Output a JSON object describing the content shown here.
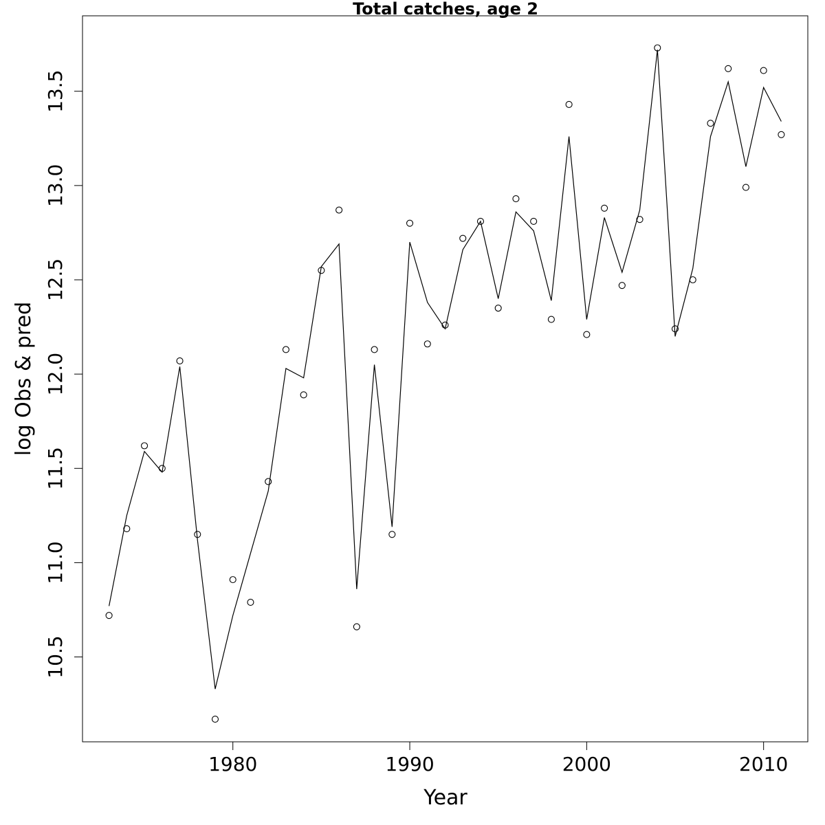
{
  "chart_data": {
    "type": "line",
    "title": "Total catches, age 2",
    "xlabel": "Year",
    "ylabel": "log Obs & pred",
    "xlim": [
      1971.5,
      2012.5
    ],
    "ylim": [
      10.05,
      13.9
    ],
    "x_ticks": [
      1980,
      1990,
      2000,
      2010
    ],
    "x_tick_labels": [
      "1980",
      "1990",
      "2000",
      "2010"
    ],
    "y_ticks": [
      10.5,
      11.0,
      11.5,
      12.0,
      12.5,
      13.0,
      13.5
    ],
    "y_tick_labels": [
      "10.5",
      "11.0",
      "11.5",
      "12.0",
      "12.5",
      "13.0",
      "13.5"
    ],
    "grid": false,
    "x": [
      1973,
      1974,
      1975,
      1976,
      1977,
      1978,
      1979,
      1980,
      1981,
      1982,
      1983,
      1984,
      1985,
      1986,
      1987,
      1988,
      1989,
      1990,
      1991,
      1992,
      1993,
      1994,
      1995,
      1996,
      1997,
      1998,
      1999,
      2000,
      2001,
      2002,
      2003,
      2004,
      2005,
      2006,
      2007,
      2008,
      2009,
      2010,
      2011
    ],
    "series": [
      {
        "style": "points",
        "marker": "open-circle",
        "values": [
          10.72,
          11.18,
          11.62,
          11.5,
          12.07,
          11.15,
          10.17,
          10.91,
          10.79,
          11.43,
          12.13,
          11.89,
          12.55,
          12.87,
          10.66,
          12.13,
          11.15,
          12.8,
          12.16,
          12.26,
          12.72,
          12.81,
          12.35,
          12.93,
          12.81,
          12.29,
          13.43,
          12.21,
          12.88,
          12.47,
          12.82,
          13.73,
          12.24,
          12.5,
          13.33,
          13.62,
          12.99,
          13.61,
          13.27
        ]
      },
      {
        "style": "line",
        "values": [
          10.77,
          11.25,
          11.59,
          11.48,
          12.04,
          11.12,
          10.33,
          10.72,
          11.05,
          11.38,
          12.03,
          11.98,
          12.57,
          12.69,
          10.86,
          12.05,
          11.19,
          12.7,
          12.38,
          12.24,
          12.66,
          12.81,
          12.4,
          12.86,
          12.76,
          12.39,
          13.26,
          12.29,
          12.83,
          12.54,
          12.87,
          13.72,
          12.2,
          12.56,
          13.26,
          13.55,
          13.1,
          13.52,
          13.34
        ]
      }
    ]
  }
}
